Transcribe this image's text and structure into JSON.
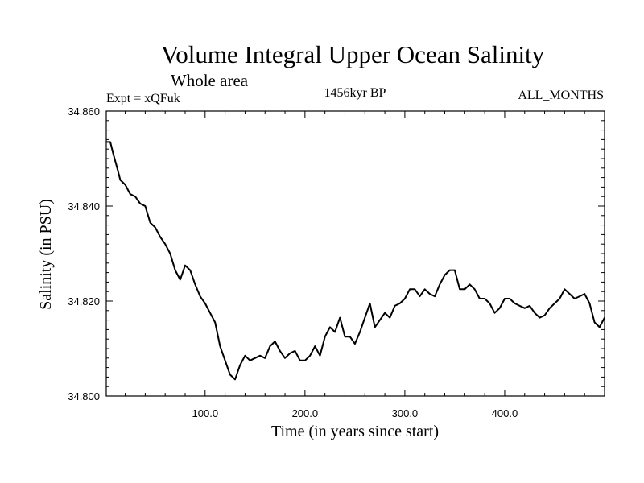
{
  "chart_data": {
    "type": "line",
    "title": "Volume Integral Upper Ocean Salinity",
    "subtitle": "Whole area",
    "left_label": "Expt = xQFuk",
    "center_label": "1456kyr BP",
    "right_label": "ALL_MONTHS",
    "xlabel": "Time (in years since start)",
    "ylabel": "Salinity (in PSU)",
    "xlim": [
      1,
      500
    ],
    "ylim": [
      34.8,
      34.86
    ],
    "x_ticks": [
      100,
      200,
      300,
      400
    ],
    "x_tick_labels": [
      "100.0",
      "200.0",
      "300.0",
      "400.0"
    ],
    "y_ticks": [
      34.8,
      34.82,
      34.84,
      34.86
    ],
    "y_tick_labels": [
      "34.800",
      "34.820",
      "34.840",
      "34.860"
    ],
    "series": [
      {
        "name": "salinity",
        "color": "#000000",
        "x": [
          1,
          5,
          8,
          12,
          15,
          20,
          25,
          30,
          35,
          40,
          45,
          50,
          55,
          60,
          65,
          70,
          75,
          80,
          85,
          90,
          95,
          100,
          105,
          110,
          115,
          120,
          125,
          130,
          135,
          140,
          145,
          150,
          155,
          160,
          165,
          170,
          175,
          180,
          185,
          190,
          195,
          200,
          205,
          210,
          215,
          220,
          225,
          230,
          235,
          240,
          245,
          250,
          255,
          260,
          265,
          270,
          275,
          280,
          285,
          290,
          295,
          300,
          305,
          310,
          315,
          320,
          325,
          330,
          335,
          340,
          345,
          350,
          355,
          360,
          365,
          370,
          375,
          380,
          385,
          390,
          395,
          400,
          405,
          410,
          415,
          420,
          425,
          430,
          435,
          440,
          445,
          450,
          455,
          460,
          465,
          470,
          475,
          480,
          485,
          490,
          495,
          500
        ],
        "values": [
          34.8535,
          34.8535,
          34.851,
          34.848,
          34.8455,
          34.8445,
          34.8425,
          34.842,
          34.8405,
          34.84,
          34.8365,
          34.8355,
          34.8335,
          34.832,
          34.83,
          34.8265,
          34.8245,
          34.8275,
          34.8265,
          34.8235,
          34.821,
          34.8195,
          34.8175,
          34.8155,
          34.8105,
          34.8075,
          34.8045,
          34.8035,
          34.8065,
          34.8085,
          34.8075,
          34.808,
          34.8085,
          34.808,
          34.8105,
          34.8115,
          34.8095,
          34.808,
          34.809,
          34.8095,
          34.8075,
          34.8075,
          34.8085,
          34.8105,
          34.8085,
          34.8125,
          34.8145,
          34.8135,
          34.8165,
          34.8125,
          34.8125,
          34.811,
          34.8135,
          34.8165,
          34.8195,
          34.8145,
          34.816,
          34.8175,
          34.8165,
          34.819,
          34.8195,
          34.8205,
          34.8225,
          34.8225,
          34.821,
          34.8225,
          34.8215,
          34.821,
          34.8235,
          34.8255,
          34.8265,
          34.8265,
          34.8225,
          34.8225,
          34.8235,
          34.8225,
          34.8205,
          34.8205,
          34.8195,
          34.8175,
          34.8185,
          34.8205,
          34.8205,
          34.8195,
          34.819,
          34.8185,
          34.819,
          34.8175,
          34.8165,
          34.817,
          34.8185,
          34.8195,
          34.8205,
          34.8225,
          34.8215,
          34.8205,
          34.821,
          34.8215,
          34.8195,
          34.8155,
          34.8145,
          34.8165
        ]
      }
    ]
  }
}
